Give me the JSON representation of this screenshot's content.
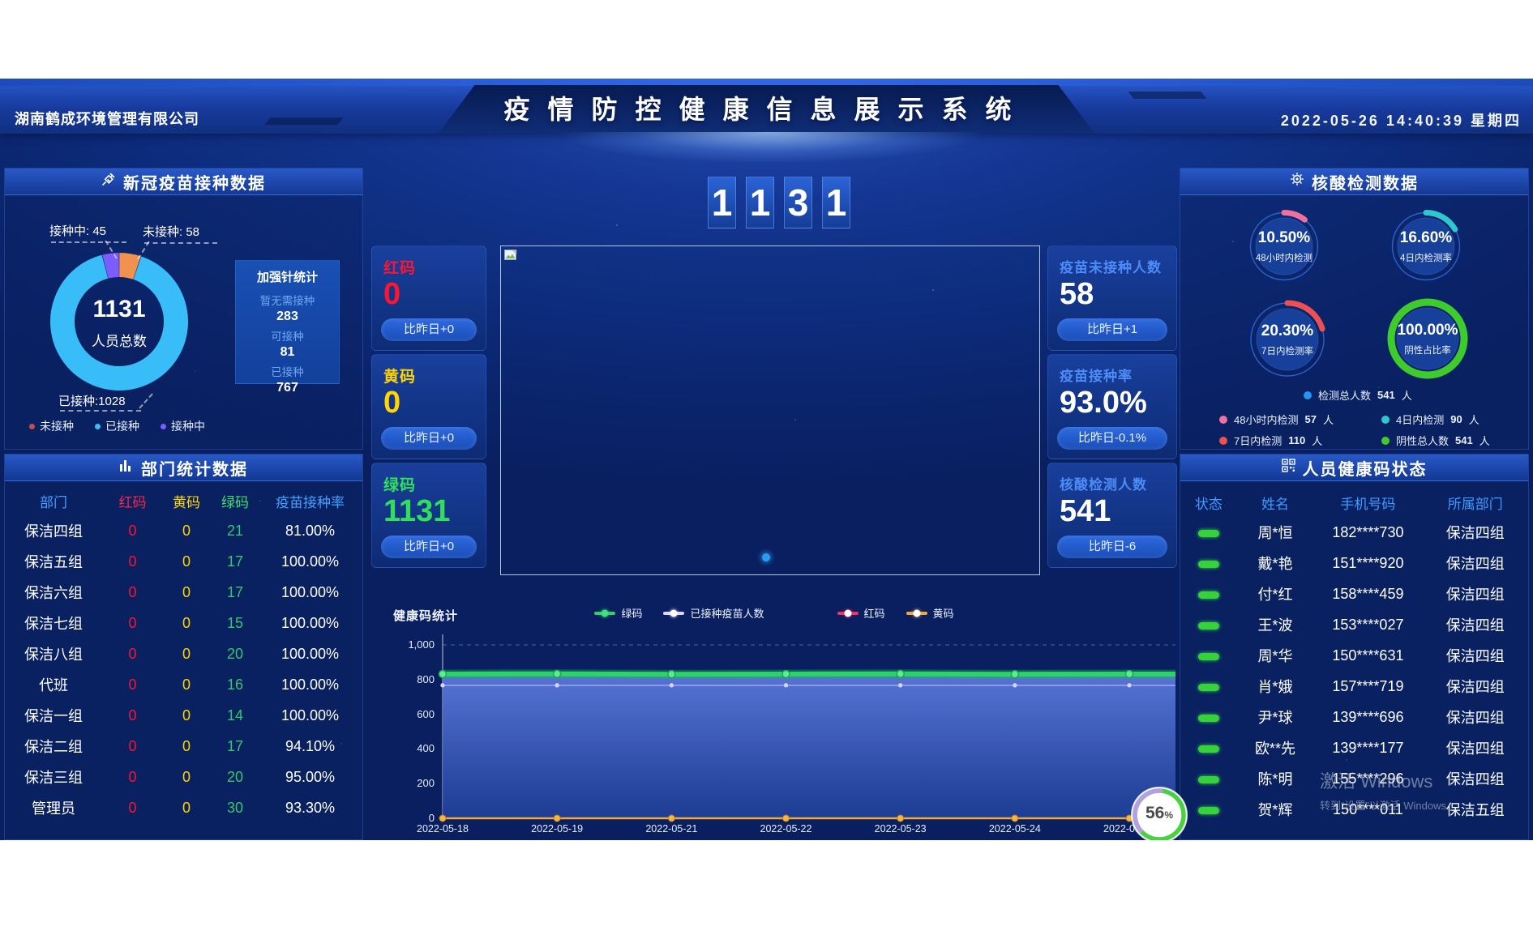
{
  "header": {
    "company": "湖南鹤成环境管理有限公司",
    "title": "疫情防控健康信息展示系统",
    "datetime": "2022-05-26 14:40:39 星期四"
  },
  "big_counter": {
    "digits": [
      "1",
      "1",
      "3",
      "1"
    ]
  },
  "vaccine_panel": {
    "title": "新冠疫苗接种数据",
    "donut": {
      "total": "1131",
      "total_label": "人员总数",
      "segments": [
        {
          "name": "未接种",
          "value": 58,
          "color": "#f0914d"
        },
        {
          "name": "已接种",
          "value": 1028,
          "color": "#38bdf8"
        },
        {
          "name": "接种中",
          "value": 45,
          "color": "#7c5cfa"
        }
      ],
      "callout_vaccinating": "接种中: 45",
      "callout_unvaccinated": "未接种: 58",
      "callout_vaccinated": "已接种:1028"
    },
    "legend": [
      {
        "label": "未接种",
        "color": "#c0504d"
      },
      {
        "label": "已接种",
        "color": "#38bdf8"
      },
      {
        "label": "接种中",
        "color": "#7c5cfa"
      }
    ],
    "booster": {
      "title": "加强针统计",
      "items": [
        {
          "label": "暂无需接种",
          "value": "283"
        },
        {
          "label": "可接种",
          "value": "81"
        },
        {
          "label": "已接种",
          "value": "767"
        }
      ]
    }
  },
  "department_panel": {
    "title": "部门统计数据",
    "headers": [
      "部门",
      "红码",
      "黄码",
      "绿码",
      "疫苗接种率"
    ],
    "rows": [
      [
        "保洁四组",
        "0",
        "0",
        "21",
        "81.00%"
      ],
      [
        "保洁五组",
        "0",
        "0",
        "17",
        "100.00%"
      ],
      [
        "保洁六组",
        "0",
        "0",
        "17",
        "100.00%"
      ],
      [
        "保洁七组",
        "0",
        "0",
        "15",
        "100.00%"
      ],
      [
        "保洁八组",
        "0",
        "0",
        "20",
        "100.00%"
      ],
      [
        "代班",
        "0",
        "0",
        "16",
        "100.00%"
      ],
      [
        "保洁一组",
        "0",
        "0",
        "14",
        "100.00%"
      ],
      [
        "保洁二组",
        "0",
        "0",
        "17",
        "94.10%"
      ],
      [
        "保洁三组",
        "0",
        "0",
        "20",
        "95.00%"
      ],
      [
        "管理员",
        "0",
        "0",
        "30",
        "93.30%"
      ]
    ]
  },
  "code_cards": [
    {
      "label": "红码",
      "value": "0",
      "delta": "比昨日+0",
      "color": "#ff1430"
    },
    {
      "label": "黄码",
      "value": "0",
      "delta": "比昨日+0",
      "color": "#ffd400"
    },
    {
      "label": "绿码",
      "value": "1131",
      "delta": "比昨日+0",
      "color": "#2fe05a"
    }
  ],
  "stat_cards": [
    {
      "label": "疫苗未接种人数",
      "value": "58",
      "delta": "比昨日+1"
    },
    {
      "label": "疫苗接种率",
      "value": "93.0%",
      "delta": "比昨日-0.1%"
    },
    {
      "label": "核酸检测人数",
      "value": "541",
      "delta": "比昨日-6"
    }
  ],
  "nucleic_panel": {
    "title": "核酸检测数据",
    "gauges": [
      {
        "pct": "10.50%",
        "label": "48小时内检测",
        "frac": 0.105,
        "color": "#f0709f"
      },
      {
        "pct": "16.60%",
        "label": "4日内检测率",
        "frac": 0.166,
        "color": "#2ec7cf"
      },
      {
        "pct": "20.30%",
        "label": "7日内检测率",
        "frac": 0.203,
        "color": "#ee4f55"
      },
      {
        "pct": "100.00%",
        "label": "阴性占比率",
        "frac": 1,
        "color": "#3ecc2d"
      }
    ],
    "legend_total": {
      "label": "检测总人数",
      "value": "541",
      "unit": "人",
      "color": "#2196f3"
    },
    "legend_items": [
      {
        "label": "48小时内检测",
        "value": "57",
        "unit": "人",
        "color": "#f0709f"
      },
      {
        "label": "4日内检测",
        "value": "90",
        "unit": "人",
        "color": "#2ec7cf"
      },
      {
        "label": "7日内检测",
        "value": "110",
        "unit": "人",
        "color": "#ee4f55"
      },
      {
        "label": "阴性总人数",
        "value": "541",
        "unit": "人",
        "color": "#3ecc2d"
      }
    ]
  },
  "health_panel": {
    "title": "人员健康码状态",
    "headers": [
      "状态",
      "姓名",
      "手机号码",
      "所属部门"
    ],
    "status_color": "#35d23c",
    "rows": [
      {
        "status": "green",
        "name": "周*恒",
        "phone": "182****730",
        "dept": "保洁四组"
      },
      {
        "status": "green",
        "name": "戴*艳",
        "phone": "151****920",
        "dept": "保洁四组"
      },
      {
        "status": "green",
        "name": "付*红",
        "phone": "158****459",
        "dept": "保洁四组"
      },
      {
        "status": "green",
        "name": "王*波",
        "phone": "153****027",
        "dept": "保洁四组"
      },
      {
        "status": "green",
        "name": "周*华",
        "phone": "150****631",
        "dept": "保洁四组"
      },
      {
        "status": "green",
        "name": "肖*娥",
        "phone": "157****719",
        "dept": "保洁四组"
      },
      {
        "status": "green",
        "name": "尹*球",
        "phone": "139****696",
        "dept": "保洁四组"
      },
      {
        "status": "green",
        "name": "欧**先",
        "phone": "139****177",
        "dept": "保洁四组"
      },
      {
        "status": "green",
        "name": "陈*明",
        "phone": "155****296",
        "dept": "保洁四组"
      },
      {
        "status": "green",
        "name": "贺*辉",
        "phone": "150****011",
        "dept": "保洁五组"
      }
    ]
  },
  "chart_data": {
    "type": "line",
    "title": "健康码统计",
    "x": [
      "2022-05-18",
      "2022-05-19",
      "2022-05-21",
      "2022-05-22",
      "2022-05-23",
      "2022-05-24",
      "2022-05-25"
    ],
    "series": [
      {
        "name": "绿码",
        "color": "#2bd467",
        "values": [
          832,
          833,
          831,
          832,
          833,
          831,
          832
        ],
        "area": true
      },
      {
        "name": "已接种疫苗人数",
        "color": "#ded6ff",
        "values": [
          767,
          767,
          767,
          767,
          767,
          767,
          767
        ]
      },
      {
        "name": "红码",
        "color": "#ff2e63",
        "values": [
          0,
          0,
          0,
          0,
          0,
          0,
          0
        ]
      },
      {
        "name": "黄码",
        "color": "#f2a93b",
        "values": [
          0,
          0,
          0,
          0,
          0,
          0,
          0
        ]
      }
    ],
    "ylim": [
      0,
      1000
    ],
    "yticks": [
      "0",
      "200",
      "400",
      "600",
      "800",
      "1,000"
    ],
    "legend_position": "top",
    "grid": "dashed-top-line-only"
  },
  "widgets": {
    "gauge_pct": "56",
    "gauge_unit": "%",
    "watermark_line1": "激活 Windows",
    "watermark_line2": "转到“设置”以激活 Windows。"
  }
}
